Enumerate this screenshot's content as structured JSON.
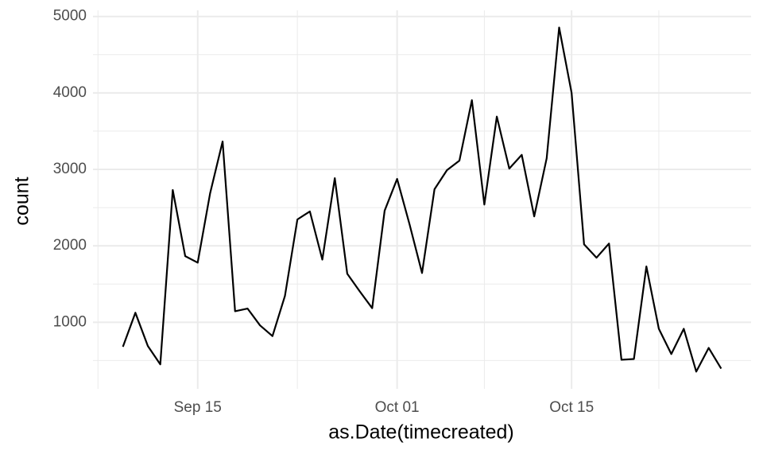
{
  "chart_data": {
    "type": "line",
    "x_label": "as.Date(timecreated)",
    "y_label": "count",
    "x": [
      "Sep 09",
      "Sep 10",
      "Sep 11",
      "Sep 12",
      "Sep 13",
      "Sep 14",
      "Sep 15",
      "Sep 16",
      "Sep 17",
      "Sep 18",
      "Sep 19",
      "Sep 20",
      "Sep 21",
      "Sep 22",
      "Sep 23",
      "Sep 24",
      "Sep 25",
      "Sep 26",
      "Sep 27",
      "Sep 28",
      "Sep 29",
      "Sep 30",
      "Oct 01",
      "Oct 02",
      "Oct 03",
      "Oct 04",
      "Oct 05",
      "Oct 06",
      "Oct 07",
      "Oct 08",
      "Oct 09",
      "Oct 10",
      "Oct 11",
      "Oct 12",
      "Oct 13",
      "Oct 14",
      "Oct 15",
      "Oct 16",
      "Oct 17",
      "Oct 18",
      "Oct 19",
      "Oct 20",
      "Oct 21",
      "Oct 22",
      "Oct 23",
      "Oct 24",
      "Oct 25",
      "Oct 26",
      "Oct 27"
    ],
    "values": [
      680,
      1125,
      690,
      450,
      2730,
      1865,
      1780,
      2690,
      3365,
      1145,
      1180,
      960,
      820,
      1345,
      2345,
      2450,
      1820,
      2885,
      1635,
      1405,
      1185,
      2460,
      2875,
      2280,
      1645,
      2740,
      2990,
      3115,
      3905,
      2540,
      3690,
      3010,
      3190,
      2385,
      3145,
      4855,
      4000,
      2020,
      1845,
      2030,
      510,
      520,
      1730,
      915,
      585,
      915,
      355,
      665,
      395
    ],
    "color": "#000000",
    "xticks": [
      "Sep 15",
      "Oct 01",
      "Oct 15"
    ],
    "ylim": [
      130,
      5080
    ],
    "yticks": [
      1000,
      2000,
      3000,
      4000,
      5000
    ],
    "grid": true
  }
}
